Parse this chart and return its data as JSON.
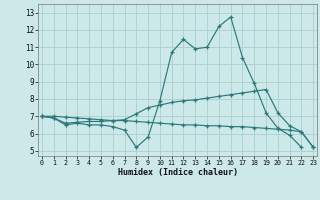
{
  "title": "",
  "xlabel": "Humidex (Indice chaleur)",
  "ylabel": "",
  "background_color": "#cce8e8",
  "plot_bg_color": "#cce8e8",
  "line_color": "#2a7a7a",
  "grid_color": "#aacfcf",
  "x_ticks": [
    0,
    1,
    2,
    3,
    4,
    5,
    6,
    7,
    8,
    9,
    10,
    11,
    12,
    13,
    14,
    15,
    16,
    17,
    18,
    19,
    20,
    21,
    22,
    23
  ],
  "y_ticks": [
    5,
    6,
    7,
    8,
    9,
    10,
    11,
    12,
    13
  ],
  "xlim": [
    -0.3,
    23.3
  ],
  "ylim": [
    4.7,
    13.5
  ],
  "series": [
    [
      7.0,
      6.9,
      6.5,
      6.6,
      6.5,
      6.5,
      6.4,
      6.2,
      5.2,
      5.8,
      7.9,
      10.7,
      11.45,
      10.9,
      11.0,
      12.2,
      12.75,
      10.4,
      8.9,
      7.2,
      6.3,
      5.9,
      5.2,
      null
    ],
    [
      7.0,
      6.9,
      6.6,
      6.65,
      6.7,
      6.7,
      6.75,
      6.8,
      7.15,
      7.5,
      7.65,
      7.8,
      7.9,
      7.95,
      8.05,
      8.15,
      8.25,
      8.35,
      8.45,
      8.55,
      7.2,
      6.45,
      6.1,
      5.2
    ],
    [
      7.0,
      7.0,
      6.95,
      6.9,
      6.85,
      6.8,
      6.75,
      6.75,
      6.7,
      6.65,
      6.6,
      6.55,
      6.5,
      6.5,
      6.45,
      6.45,
      6.4,
      6.4,
      6.35,
      6.3,
      6.25,
      6.2,
      6.1,
      5.2
    ]
  ]
}
